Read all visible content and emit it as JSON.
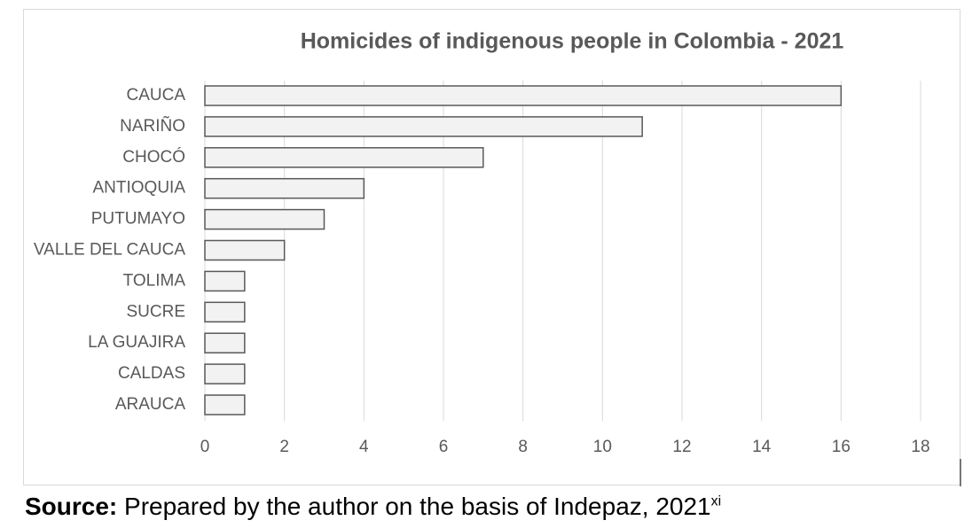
{
  "chart_data": {
    "type": "hbar",
    "title": "Homicides of indigenous people in Colombia - 2021",
    "categories": [
      "CAUCA",
      "NARIÑO",
      "CHOCÓ",
      "ANTIOQUIA",
      "PUTUMAYO",
      "VALLE DEL CAUCA",
      "TOLIMA",
      "SUCRE",
      "LA GUAJIRA",
      "CALDAS",
      "ARAUCA"
    ],
    "values": [
      16,
      11,
      7,
      4,
      3,
      2,
      1,
      1,
      1,
      1,
      1
    ],
    "color": "#f2f2f2",
    "edge_color": "#595959",
    "xlim": [
      0,
      18
    ],
    "xticks": [
      0,
      2,
      4,
      6,
      8,
      10,
      12,
      14,
      16,
      18
    ],
    "grid": true
  },
  "caption": {
    "label": "Source:",
    "text": "Prepared by the author on the basis of Indepaz, 2021",
    "note": "xi"
  }
}
